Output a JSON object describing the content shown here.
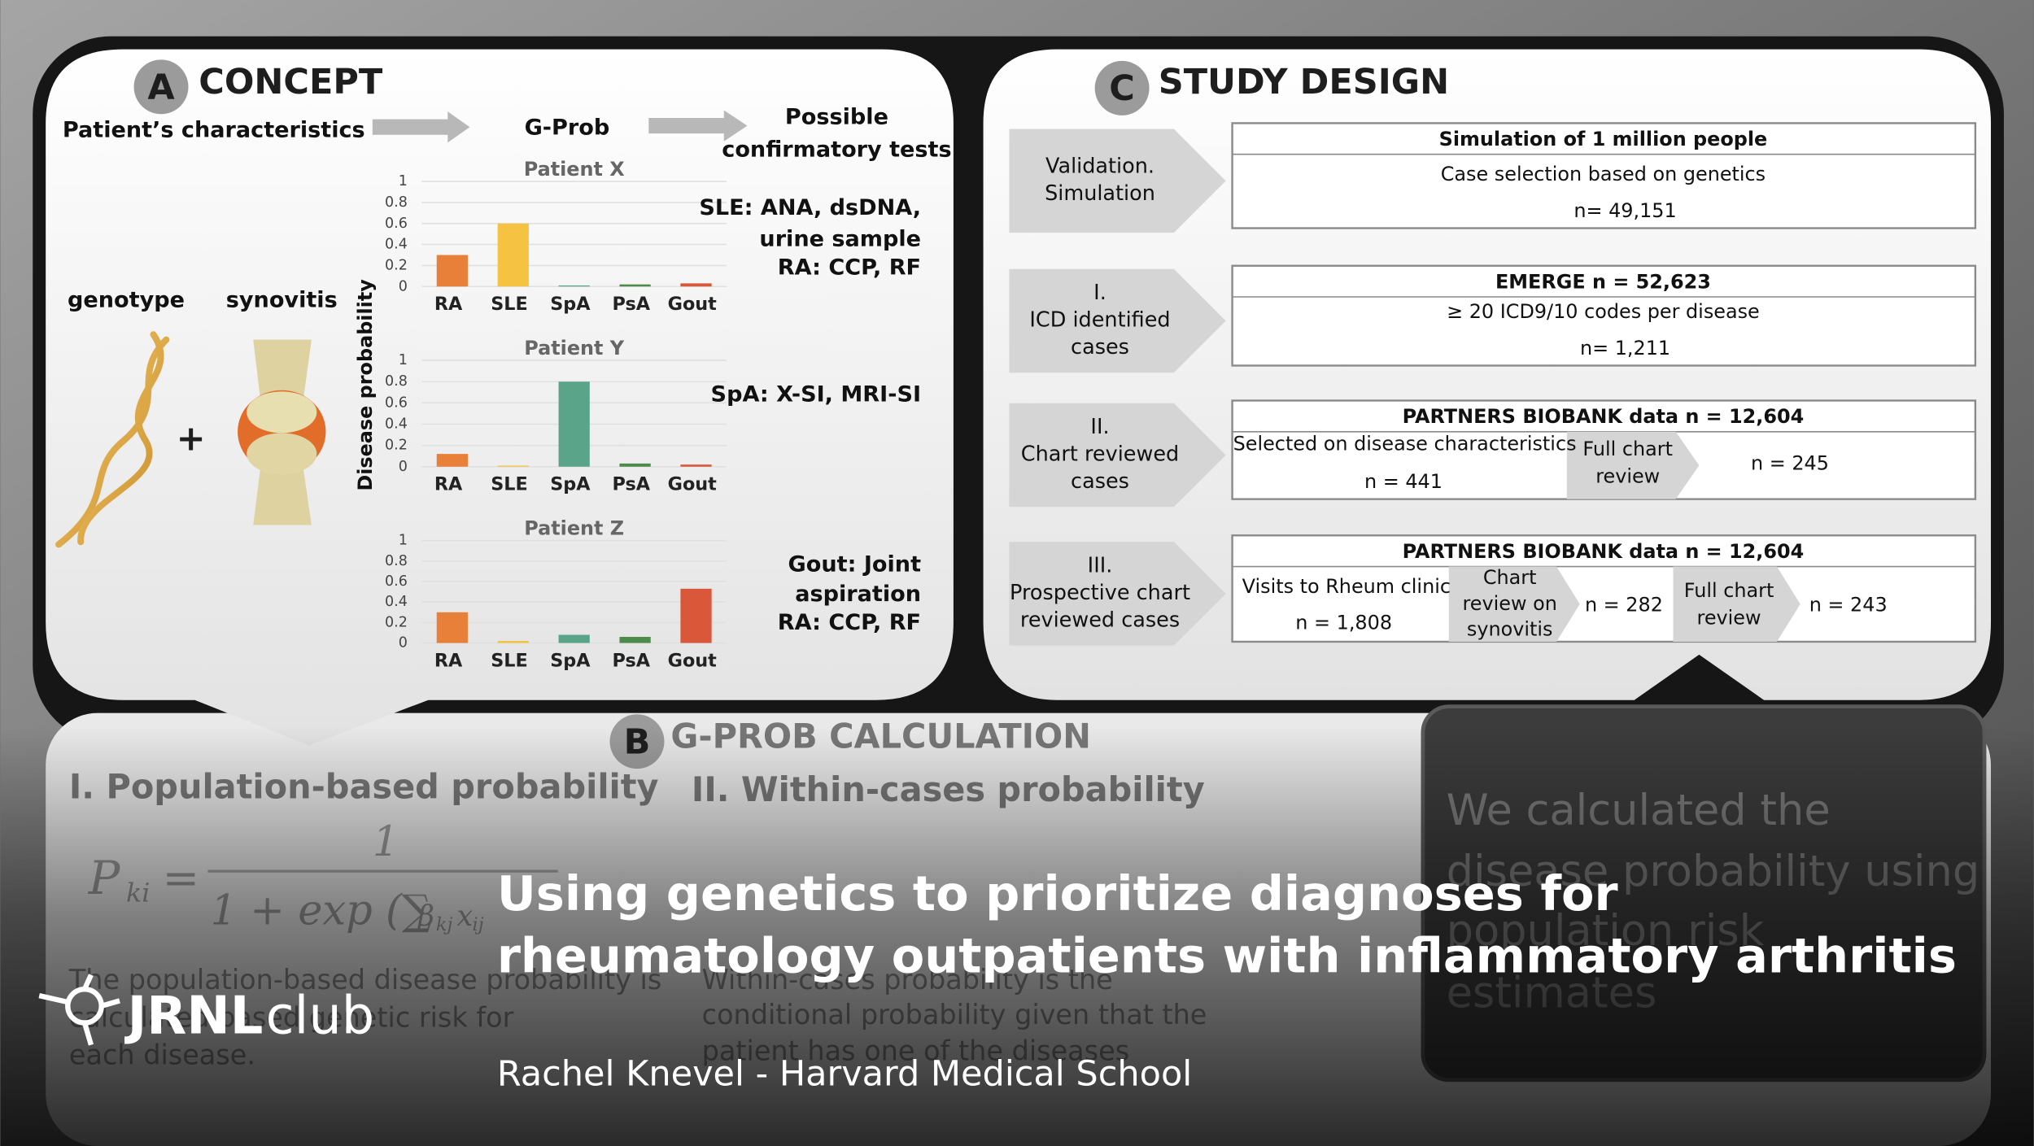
{
  "panel_a": {
    "badge": "A",
    "title": "CONCEPT",
    "patient_characteristics": "Patient’s characteristics",
    "gprob": "G-Prob",
    "tests_heading": [
      "Possible",
      "confirmatory tests"
    ],
    "genotype": "genotype",
    "synovitis": "synovitis",
    "plus": "+",
    "y_axis_label": "Disease probability",
    "charts": [
      {
        "title": "Patient X",
        "categories": [
          "RA",
          "SLE",
          "SpA",
          "PsA",
          "Gout"
        ],
        "values": [
          0.3,
          0.6,
          0.01,
          0.02,
          0.03
        ],
        "colors": [
          "#e8803a",
          "#f5c242",
          "#5aa58a",
          "#4e8a4a",
          "#d9583a"
        ],
        "ylim": [
          0,
          1
        ],
        "yticks": [
          0,
          0.2,
          0.4,
          0.6,
          0.8,
          1
        ]
      },
      {
        "title": "Patient Y",
        "categories": [
          "RA",
          "SLE",
          "SpA",
          "PsA",
          "Gout"
        ],
        "values": [
          0.12,
          0.01,
          0.8,
          0.03,
          0.02
        ],
        "colors": [
          "#e8803a",
          "#f5c242",
          "#5aa58a",
          "#4e8a4a",
          "#d9583a"
        ],
        "ylim": [
          0,
          1
        ],
        "yticks": [
          0,
          0.2,
          0.4,
          0.6,
          0.8,
          1
        ]
      },
      {
        "title": "Patient Z",
        "categories": [
          "RA",
          "SLE",
          "SpA",
          "PsA",
          "Gout"
        ],
        "values": [
          0.3,
          0.02,
          0.08,
          0.06,
          0.53
        ],
        "colors": [
          "#e8803a",
          "#f5c242",
          "#5aa58a",
          "#4e8a4a",
          "#d9583a"
        ],
        "ylim": [
          0,
          1
        ],
        "yticks": [
          0,
          0.2,
          0.4,
          0.6,
          0.8,
          1
        ]
      }
    ],
    "tests": [
      [
        "SLE: ANA, dsDNA,",
        "urine sample",
        "RA: CCP, RF"
      ],
      [
        "SpA: X-SI, MRI-SI"
      ],
      [
        "Gout: Joint",
        "aspiration",
        "RA: CCP, RF"
      ]
    ]
  },
  "panel_b": {
    "badge": "B",
    "title": "G-PROB CALCULATION",
    "heading_1": "I. Population-based probability",
    "heading_2": "II. Within-cases probability",
    "formula": {
      "lhs": "P",
      "lhs_sub": "ki",
      "eq": "=",
      "numerator": "1",
      "denominator": "1 + exp (∑",
      "beta": "β",
      "beta_sub": "kj",
      "x": "x",
      "x_sub": "ij"
    },
    "text_1": [
      "The population-based disease probability is",
      "calculated based genetic risk for",
      "each disease."
    ],
    "text_2": [
      "Within-cases probability is the",
      "conditional probability given that the",
      "patient has one of the diseases"
    ],
    "note": [
      "We calculated the",
      "disease probability using",
      "population risk",
      "estimates"
    ]
  },
  "panel_c": {
    "badge": "C",
    "title": "STUDY DESIGN",
    "rows": [
      {
        "label": [
          "Validation.",
          "Simulation"
        ],
        "header": "Simulation of 1 million people",
        "lines": [
          "Case selection based on genetics",
          "n= 49,151"
        ]
      },
      {
        "label": [
          "I.",
          "ICD identified",
          "cases"
        ],
        "header": "EMERGE n = 52,623",
        "lines": [
          "≥ 20 ICD9/10 codes per disease",
          "n= 1,211"
        ]
      },
      {
        "label": [
          "II.",
          "Chart reviewed",
          "cases"
        ],
        "header": "PARTNERS BIOBANK data n = 12,604",
        "lines": [
          "Selected on disease characteristics",
          "n = 441",
          "Full chart",
          "review",
          "n = 245"
        ]
      },
      {
        "label": [
          "III.",
          "Prospective chart",
          "reviewed cases"
        ],
        "header": "PARTNERS BIOBANK data n = 12,604",
        "lines": [
          "Visits to Rheum clinic",
          "n = 1,808",
          "Chart",
          "review on",
          "synovitis",
          "n = 282",
          "Full chart",
          "review",
          "n = 243"
        ]
      }
    ]
  },
  "overlay": {
    "title": [
      "Using genetics to prioritize diagnoses for",
      "rheumatology outpatients with inflammatory arthritis"
    ],
    "author": "Rachel Knevel - Harvard Medical School",
    "logo": [
      "JRNL",
      "club"
    ]
  }
}
